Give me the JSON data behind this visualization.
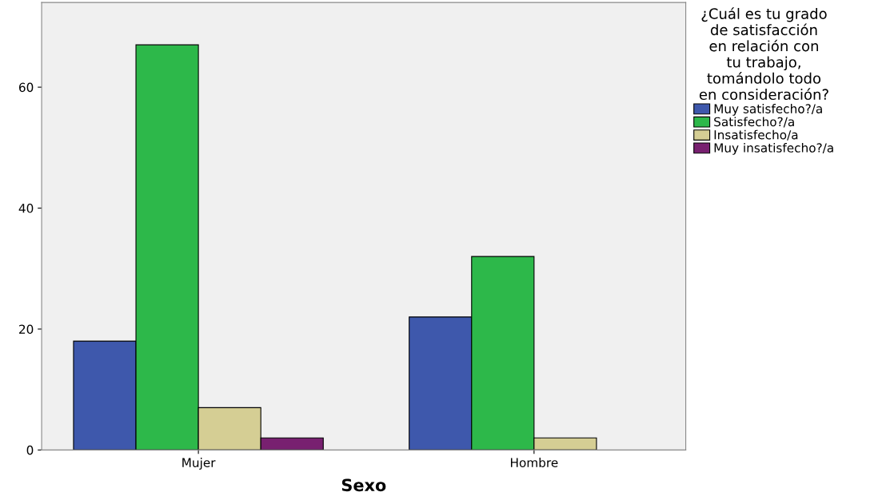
{
  "chart_data": {
    "type": "bar",
    "xlabel": "Sexo",
    "legend_title": "¿Cuál es tu grado\nde satisfacción\nen relación con\ntu trabajo,\ntomándolo todo\nen consideración?",
    "categories": [
      "Mujer",
      "Hombre"
    ],
    "series": [
      {
        "name": "Muy satisfecho?/a",
        "color": "#3e58ac",
        "values": [
          18,
          22
        ]
      },
      {
        "name": "Satisfecho?/a",
        "color": "#2db84a",
        "values": [
          67,
          32
        ]
      },
      {
        "name": "Insatisfecho/a",
        "color": "#d5ce94",
        "values": [
          7,
          2
        ]
      },
      {
        "name": "Muy insatisfecho?/a",
        "color": "#782070",
        "values": [
          2,
          null
        ]
      }
    ],
    "ylim": [
      0,
      74
    ],
    "yticks": [
      0,
      20,
      40,
      60
    ],
    "grid": false,
    "legend": "right"
  }
}
